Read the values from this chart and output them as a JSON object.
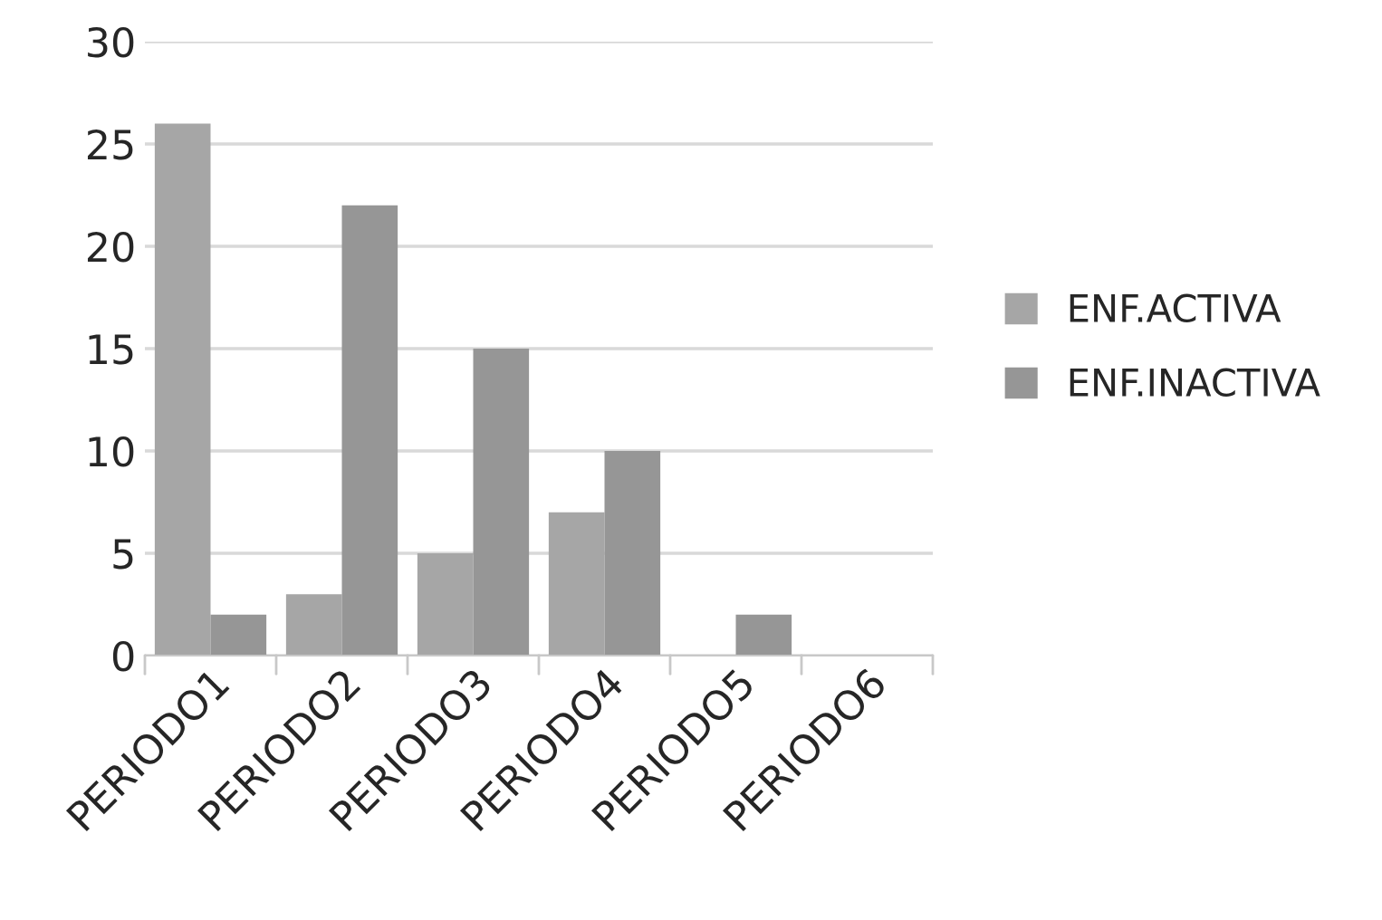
{
  "chart_data": {
    "type": "bar",
    "categories": [
      "PERIODO1",
      "PERIODO2",
      "PERIODO3",
      "PERIODO4",
      "PERIODO5",
      "PERIODO6"
    ],
    "series": [
      {
        "name": "ENF.ACTIVA",
        "color": "#a6a6a6",
        "values": [
          26,
          3,
          5,
          7,
          null,
          null
        ]
      },
      {
        "name": "ENF.INACTIVA",
        "color": "#969696",
        "values": [
          2,
          22,
          15,
          10,
          2,
          null
        ]
      }
    ],
    "ylim": [
      0,
      30
    ],
    "yticks": [
      0,
      5,
      10,
      15,
      20,
      25,
      30
    ],
    "grid": "y",
    "legend": "right"
  }
}
